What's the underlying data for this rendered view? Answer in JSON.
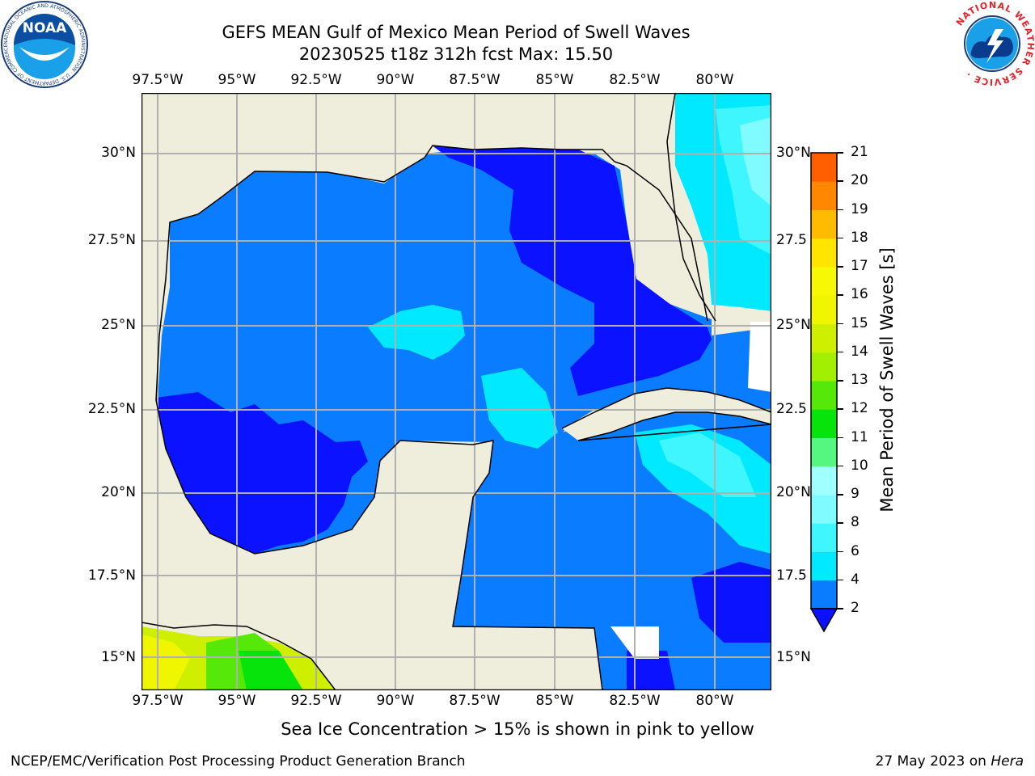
{
  "title_line1": "GEFS MEAN Gulf of Mexico Mean Period of Swell Waves",
  "title_line2": "20230525 t18z 312h fcst   Max: 15.50",
  "lon_labels": [
    "97.5°W",
    "95°W",
    "92.5°W",
    "90°W",
    "87.5°W",
    "85°W",
    "82.5°W",
    "80°W"
  ],
  "lat_labels_left": [
    "30°N",
    "27.5°N",
    "25°N",
    "22.5°N",
    "20°N",
    "17.5°N",
    "15°N"
  ],
  "lat_labels_right": [
    "30°N",
    "27.5",
    "25°N",
    "22.5",
    "20°N",
    "17.5",
    "15°N"
  ],
  "colorbar": {
    "title": "Mean Period of Swell Waves [s]",
    "ticks": [
      "2",
      "4",
      "6",
      "8",
      "9",
      "10",
      "11",
      "12",
      "13",
      "14",
      "15",
      "16",
      "17",
      "18",
      "19",
      "20",
      "21"
    ],
    "colors": [
      "#0a7cff",
      "#00e9ff",
      "#3ff6ff",
      "#80fbff",
      "#a0ffff",
      "#55f780",
      "#07e40b",
      "#55e809",
      "#a2ef01",
      "#cef000",
      "#f0f600",
      "#f7f804",
      "#ffe500",
      "#ffbb00",
      "#ff8800",
      "#ff5f00",
      "#ff3700",
      "#ff0000"
    ],
    "extend_color": "#0a12ff"
  },
  "logos": {
    "noaa": {
      "text": "NOAA",
      "ring": "NATIONAL OCEANIC AND ATMOSPHERIC ADMINISTRATION · U.S. DEPARTMENT OF COMMERCE ·"
    },
    "nws": {
      "ring": "NATIONAL WEATHER SERVICE ·"
    }
  },
  "note": "Sea Ice Concentration > 15% is shown in pink to yellow",
  "footer_left": "NCEP/EMC/Verification Post Processing Product Generation Branch",
  "footer_date": "27 May 2023 on ",
  "footer_host": "Hera"
}
